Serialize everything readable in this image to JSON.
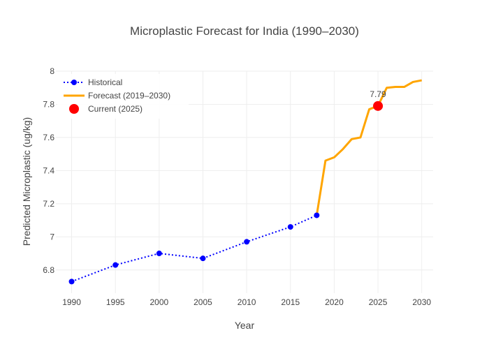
{
  "chart_data": {
    "type": "line",
    "title": "Microplastic Forecast for India (1990–2030)",
    "xlabel": "Year",
    "ylabel": "Predicted Microplastic (ug/kg)",
    "xlim": [
      1988.2,
      2031.3
    ],
    "ylim": [
      6.66,
      8.0
    ],
    "x_ticks": [
      1990,
      1995,
      2000,
      2005,
      2010,
      2015,
      2020,
      2025,
      2030
    ],
    "y_ticks": [
      6.8,
      7.0,
      7.2,
      7.4,
      7.6,
      7.8,
      8.0
    ],
    "y_tick_labels": [
      "6.8",
      "7",
      "7.2",
      "7.4",
      "7.6",
      "7.8",
      "8"
    ],
    "grid": true,
    "legend_position": "top-left",
    "series": [
      {
        "name": "Historical",
        "style": "dotted-line-markers",
        "color": "#0000ff",
        "x": [
          1990,
          1995,
          2000,
          2005,
          2010,
          2015,
          2018
        ],
        "y": [
          6.73,
          6.83,
          6.9,
          6.87,
          6.97,
          7.06,
          7.13
        ]
      },
      {
        "name": "Forecast (2019–2030)",
        "style": "solid-line",
        "color": "#ffa500",
        "x": [
          2018,
          2019,
          2020,
          2021,
          2022,
          2023,
          2024,
          2025,
          2026,
          2027,
          2028,
          2029,
          2030
        ],
        "y": [
          7.13,
          7.46,
          7.48,
          7.53,
          7.59,
          7.6,
          7.77,
          7.79,
          7.9,
          7.905,
          7.905,
          7.935,
          7.945
        ]
      },
      {
        "name": "Current (2025)",
        "style": "marker",
        "color": "#ff0000",
        "x": [
          2025
        ],
        "y": [
          7.79
        ]
      }
    ],
    "annotations": [
      {
        "text": "7.79",
        "x": 2025,
        "y": 7.79
      }
    ]
  }
}
